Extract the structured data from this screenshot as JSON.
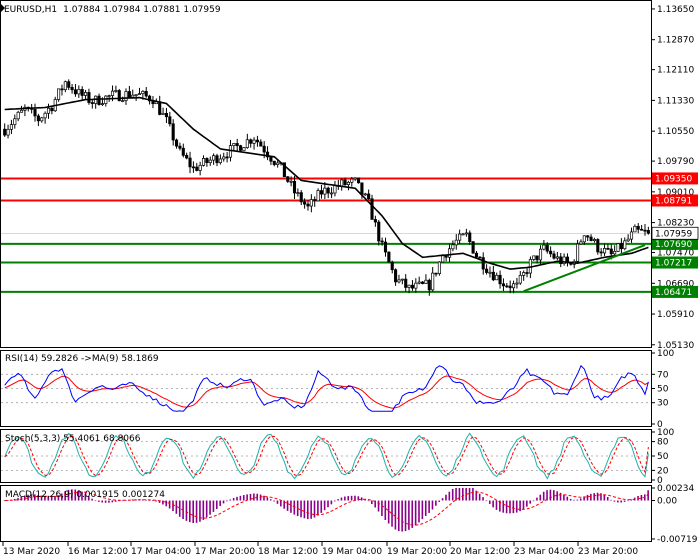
{
  "header": {
    "symbol_tf": "EURUSD,H1",
    "ohlc": "1.07884 1.07984 1.07881 1.07959"
  },
  "colors": {
    "background": "#ffffff",
    "candle": "#000000",
    "ma_line": "#000000",
    "resistance": "#ff0000",
    "support": "#008000",
    "trendline": "#008000",
    "rsi_line": "#0000ff",
    "rsi_ma": "#ff0000",
    "stoch_main": "#20b2aa",
    "stoch_signal": "#ff0000",
    "macd_hist": "#8b008b",
    "macd_signal": "#ff0000",
    "grid_dotted": "#a0a0a0"
  },
  "price_axis": {
    "min": 1.0515,
    "max": 1.1375,
    "ticks": [
      "1.13650",
      "1.12870",
      "1.12110",
      "1.11330",
      "1.10550",
      "1.09790",
      "1.09010",
      "1.08230",
      "1.07470",
      "1.06690",
      "1.05910",
      "1.05130"
    ]
  },
  "levels": {
    "resistance": [
      {
        "label": "1.09350",
        "value": 1.0935
      },
      {
        "label": "1.08791",
        "value": 1.08791
      }
    ],
    "support": [
      {
        "label": "1.07690",
        "value": 1.0769
      },
      {
        "label": "1.07217",
        "value": 1.07217
      },
      {
        "label": "1.06471",
        "value": 1.06471
      }
    ],
    "current": {
      "label": "1.07959",
      "value": 1.07959
    }
  },
  "trendline": {
    "from": {
      "bar": 154,
      "price": 1.0649
    },
    "to": {
      "bar": 190,
      "price": 1.0766
    }
  },
  "time_axis": {
    "labels": [
      "13 Mar 2020",
      "16 Mar 12:00",
      "17 Mar 04:00",
      "17 Mar 20:00",
      "18 Mar 12:00",
      "19 Mar 04:00",
      "19 Mar 20:00",
      "20 Mar 12:00",
      "23 Mar 04:00",
      "23 Mar 20:00"
    ]
  },
  "rsi": {
    "title": "RSI(14) 59.2826 ->MA(9) 58.1869",
    "axis": [
      "100",
      "70",
      "50",
      "30",
      "0"
    ]
  },
  "stoch": {
    "title": "Stoch(5,3,3) 55.4061 68.8066",
    "axis": [
      "100",
      "80",
      "50",
      "20",
      "0"
    ]
  },
  "macd": {
    "title": "MACD(12,26,9) 0.001915 0.001274",
    "axis": [
      "0.00234",
      "0.00",
      "-0.00719"
    ]
  },
  "chart_data": {
    "type": "candlestick",
    "symbol": "EURUSD",
    "timeframe": "H1",
    "bars": 192,
    "close_path": [
      [
        0,
        1.106
      ],
      [
        6,
        1.111
      ],
      [
        10,
        1.1085
      ],
      [
        14,
        1.112
      ],
      [
        18,
        1.118
      ],
      [
        22,
        1.115
      ],
      [
        26,
        1.113
      ],
      [
        32,
        1.1145
      ],
      [
        38,
        1.115
      ],
      [
        44,
        1.1138
      ],
      [
        48,
        1.108
      ],
      [
        52,
        1.1
      ],
      [
        56,
        1.096
      ],
      [
        62,
        1.0985
      ],
      [
        68,
        1.101
      ],
      [
        74,
        1.104
      ],
      [
        78,
        1.1
      ],
      [
        82,
        1.096
      ],
      [
        86,
        1.09
      ],
      [
        90,
        1.086
      ],
      [
        94,
        1.09
      ],
      [
        100,
        1.092
      ],
      [
        104,
        1.0925
      ],
      [
        108,
        1.087
      ],
      [
        112,
        1.076
      ],
      [
        116,
        1.068
      ],
      [
        120,
        1.0655
      ],
      [
        126,
        1.0665
      ],
      [
        130,
        1.074
      ],
      [
        134,
        1.0775
      ],
      [
        137,
        1.079
      ],
      [
        140,
        1.074
      ],
      [
        144,
        1.07
      ],
      [
        148,
        1.067
      ],
      [
        152,
        1.066
      ],
      [
        156,
        1.072
      ],
      [
        160,
        1.0755
      ],
      [
        164,
        1.073
      ],
      [
        168,
        1.0715
      ],
      [
        172,
        1.08
      ],
      [
        176,
        1.076
      ],
      [
        180,
        1.074
      ],
      [
        184,
        1.077
      ],
      [
        187,
        1.08
      ],
      [
        191,
        1.0796
      ]
    ],
    "ma_path": [
      [
        0,
        1.111
      ],
      [
        12,
        1.1115
      ],
      [
        24,
        1.1135
      ],
      [
        40,
        1.114
      ],
      [
        48,
        1.1125
      ],
      [
        56,
        1.106
      ],
      [
        64,
        1.101
      ],
      [
        72,
        1.1
      ],
      [
        80,
        1.099
      ],
      [
        88,
        1.093
      ],
      [
        96,
        1.092
      ],
      [
        104,
        1.091
      ],
      [
        112,
        1.084
      ],
      [
        118,
        1.077
      ],
      [
        124,
        1.0735
      ],
      [
        130,
        1.074
      ],
      [
        136,
        1.0745
      ],
      [
        144,
        1.072
      ],
      [
        150,
        1.0705
      ],
      [
        156,
        1.071
      ],
      [
        164,
        1.0725
      ],
      [
        170,
        1.072
      ],
      [
        178,
        1.0735
      ],
      [
        186,
        1.0745
      ],
      [
        191,
        1.076
      ]
    ],
    "rsi_level": 59.2826,
    "rsi_ma": 58.1869,
    "stoch_main": 55.4061,
    "stoch_signal": 68.8066,
    "macd_main": 0.001915,
    "macd_signal": 0.001274
  }
}
